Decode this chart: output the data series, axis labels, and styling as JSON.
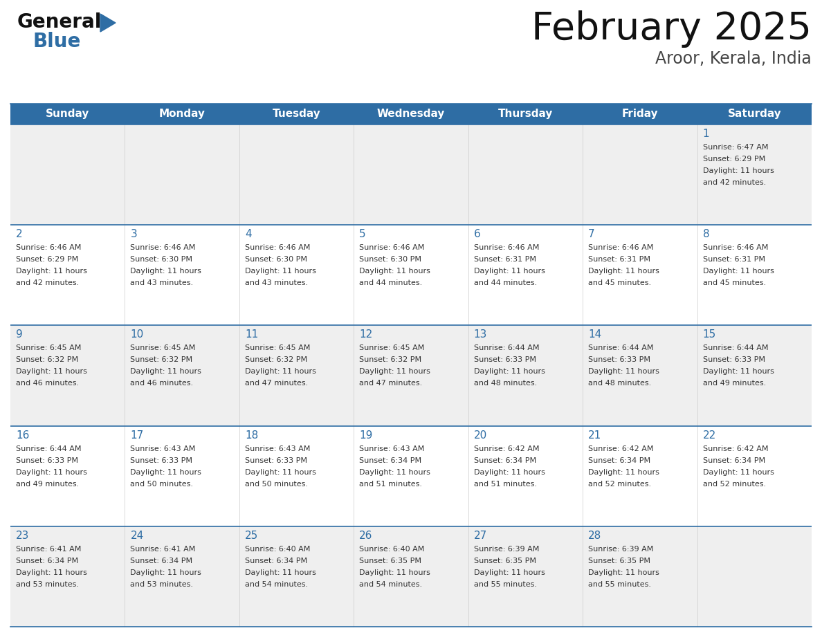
{
  "title": "February 2025",
  "subtitle": "Aroor, Kerala, India",
  "days_of_week": [
    "Sunday",
    "Monday",
    "Tuesday",
    "Wednesday",
    "Thursday",
    "Friday",
    "Saturday"
  ],
  "header_bg": "#2E6DA4",
  "header_text": "#FFFFFF",
  "cell_bg_odd": "#EFEFEF",
  "cell_bg_even": "#FFFFFF",
  "border_color": "#2E6DA4",
  "text_color": "#333333",
  "day_num_color": "#2E6DA4",
  "calendar_data": [
    [
      null,
      null,
      null,
      null,
      null,
      null,
      {
        "day": 1,
        "sunrise": "6:47 AM",
        "sunset": "6:29 PM",
        "daylight": "11 hours",
        "daylight2": "and 42 minutes."
      }
    ],
    [
      {
        "day": 2,
        "sunrise": "6:46 AM",
        "sunset": "6:29 PM",
        "daylight": "11 hours",
        "daylight2": "and 42 minutes."
      },
      {
        "day": 3,
        "sunrise": "6:46 AM",
        "sunset": "6:30 PM",
        "daylight": "11 hours",
        "daylight2": "and 43 minutes."
      },
      {
        "day": 4,
        "sunrise": "6:46 AM",
        "sunset": "6:30 PM",
        "daylight": "11 hours",
        "daylight2": "and 43 minutes."
      },
      {
        "day": 5,
        "sunrise": "6:46 AM",
        "sunset": "6:30 PM",
        "daylight": "11 hours",
        "daylight2": "and 44 minutes."
      },
      {
        "day": 6,
        "sunrise": "6:46 AM",
        "sunset": "6:31 PM",
        "daylight": "11 hours",
        "daylight2": "and 44 minutes."
      },
      {
        "day": 7,
        "sunrise": "6:46 AM",
        "sunset": "6:31 PM",
        "daylight": "11 hours",
        "daylight2": "and 45 minutes."
      },
      {
        "day": 8,
        "sunrise": "6:46 AM",
        "sunset": "6:31 PM",
        "daylight": "11 hours",
        "daylight2": "and 45 minutes."
      }
    ],
    [
      {
        "day": 9,
        "sunrise": "6:45 AM",
        "sunset": "6:32 PM",
        "daylight": "11 hours",
        "daylight2": "and 46 minutes."
      },
      {
        "day": 10,
        "sunrise": "6:45 AM",
        "sunset": "6:32 PM",
        "daylight": "11 hours",
        "daylight2": "and 46 minutes."
      },
      {
        "day": 11,
        "sunrise": "6:45 AM",
        "sunset": "6:32 PM",
        "daylight": "11 hours",
        "daylight2": "and 47 minutes."
      },
      {
        "day": 12,
        "sunrise": "6:45 AM",
        "sunset": "6:32 PM",
        "daylight": "11 hours",
        "daylight2": "and 47 minutes."
      },
      {
        "day": 13,
        "sunrise": "6:44 AM",
        "sunset": "6:33 PM",
        "daylight": "11 hours",
        "daylight2": "and 48 minutes."
      },
      {
        "day": 14,
        "sunrise": "6:44 AM",
        "sunset": "6:33 PM",
        "daylight": "11 hours",
        "daylight2": "and 48 minutes."
      },
      {
        "day": 15,
        "sunrise": "6:44 AM",
        "sunset": "6:33 PM",
        "daylight": "11 hours",
        "daylight2": "and 49 minutes."
      }
    ],
    [
      {
        "day": 16,
        "sunrise": "6:44 AM",
        "sunset": "6:33 PM",
        "daylight": "11 hours",
        "daylight2": "and 49 minutes."
      },
      {
        "day": 17,
        "sunrise": "6:43 AM",
        "sunset": "6:33 PM",
        "daylight": "11 hours",
        "daylight2": "and 50 minutes."
      },
      {
        "day": 18,
        "sunrise": "6:43 AM",
        "sunset": "6:33 PM",
        "daylight": "11 hours",
        "daylight2": "and 50 minutes."
      },
      {
        "day": 19,
        "sunrise": "6:43 AM",
        "sunset": "6:34 PM",
        "daylight": "11 hours",
        "daylight2": "and 51 minutes."
      },
      {
        "day": 20,
        "sunrise": "6:42 AM",
        "sunset": "6:34 PM",
        "daylight": "11 hours",
        "daylight2": "and 51 minutes."
      },
      {
        "day": 21,
        "sunrise": "6:42 AM",
        "sunset": "6:34 PM",
        "daylight": "11 hours",
        "daylight2": "and 52 minutes."
      },
      {
        "day": 22,
        "sunrise": "6:42 AM",
        "sunset": "6:34 PM",
        "daylight": "11 hours",
        "daylight2": "and 52 minutes."
      }
    ],
    [
      {
        "day": 23,
        "sunrise": "6:41 AM",
        "sunset": "6:34 PM",
        "daylight": "11 hours",
        "daylight2": "and 53 minutes."
      },
      {
        "day": 24,
        "sunrise": "6:41 AM",
        "sunset": "6:34 PM",
        "daylight": "11 hours",
        "daylight2": "and 53 minutes."
      },
      {
        "day": 25,
        "sunrise": "6:40 AM",
        "sunset": "6:34 PM",
        "daylight": "11 hours",
        "daylight2": "and 54 minutes."
      },
      {
        "day": 26,
        "sunrise": "6:40 AM",
        "sunset": "6:35 PM",
        "daylight": "11 hours",
        "daylight2": "and 54 minutes."
      },
      {
        "day": 27,
        "sunrise": "6:39 AM",
        "sunset": "6:35 PM",
        "daylight": "11 hours",
        "daylight2": "and 55 minutes."
      },
      {
        "day": 28,
        "sunrise": "6:39 AM",
        "sunset": "6:35 PM",
        "daylight": "11 hours",
        "daylight2": "and 55 minutes."
      },
      null
    ]
  ]
}
